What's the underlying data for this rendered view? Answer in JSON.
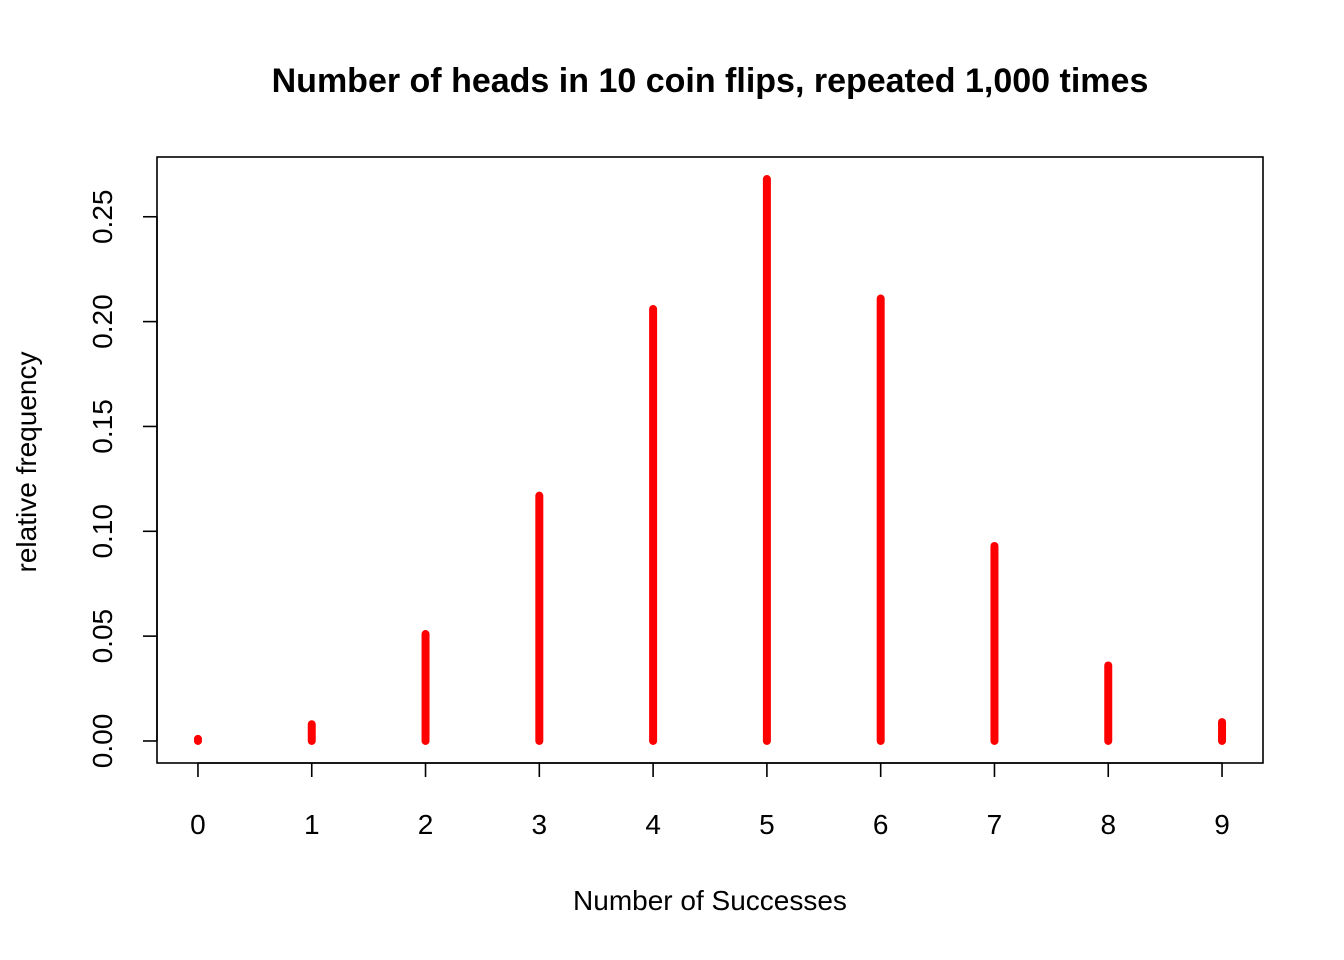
{
  "chart_data": {
    "type": "bar",
    "title": "Number of heads in 10 coin flips, repeated 1,000 times",
    "xlabel": "Number of Successes",
    "ylabel": "relative frequency",
    "x": [
      0,
      1,
      2,
      3,
      4,
      5,
      6,
      7,
      8,
      9
    ],
    "x_tick_labels": [
      "0",
      "1",
      "2",
      "3",
      "4",
      "5",
      "6",
      "7",
      "8",
      "9"
    ],
    "values": [
      0.001,
      0.008,
      0.051,
      0.117,
      0.206,
      0.268,
      0.211,
      0.093,
      0.036,
      0.009
    ],
    "y_ticks": [
      0.0,
      0.05,
      0.1,
      0.15,
      0.2,
      0.25
    ],
    "y_tick_labels": [
      "0.00",
      "0.05",
      "0.10",
      "0.15",
      "0.20",
      "0.25"
    ],
    "xlim": [
      -0.36,
      9.36
    ],
    "ylim": [
      -0.0105,
      0.2785
    ],
    "bar_style": "vertical lines (type h)",
    "grid": false,
    "legend": "none",
    "colors": {
      "bars": "#ff0000",
      "axes": "#000000",
      "background": "#ffffff"
    }
  }
}
